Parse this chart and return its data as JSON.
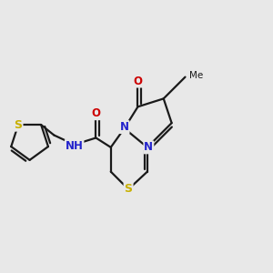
{
  "background_color": "#e8e8e8",
  "bond_color": "#1a1a1a",
  "atom_colors": {
    "S": "#c8b000",
    "N": "#2222cc",
    "O": "#cc0000",
    "C": "#1a1a1a",
    "H": "#1a1a1a"
  },
  "bond_width": 1.6,
  "font_size_atom": 8.5,
  "font_size_methyl": 7.5
}
